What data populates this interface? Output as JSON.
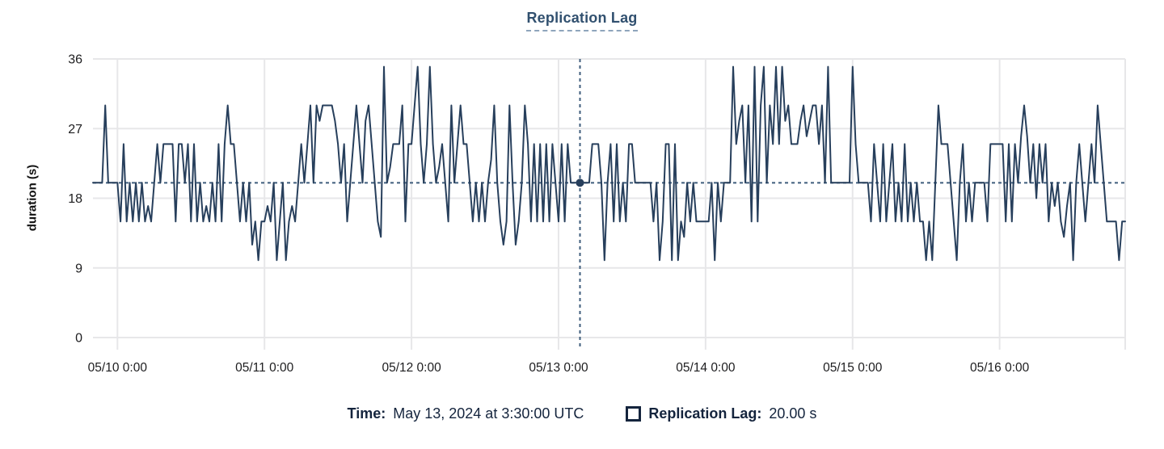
{
  "title": "Replication Lag",
  "y_axis": {
    "label": "duration (s)"
  },
  "tooltip": {
    "time_label": "Time:",
    "time_value": "May 13, 2024 at 3:30:00 UTC",
    "series_label": "Replication Lag:",
    "series_value": "20.00 s"
  },
  "colors": {
    "line": "#273f5c",
    "crosshair": "#3f5d7c",
    "dot": "#273f5c",
    "grid": "#e7e7e9",
    "tick_text": "#1d1d1f",
    "title_text": "#31506f",
    "footer_text": "#14243d"
  },
  "chart_data": {
    "type": "line",
    "title": "Replication Lag",
    "xlabel": "",
    "ylabel": "duration (s)",
    "unit": "s",
    "ylim": [
      0,
      36
    ],
    "y_ticks": [
      36,
      27,
      18,
      9,
      0
    ],
    "x_tick_labels": [
      "05/10 0:00",
      "05/11 0:00",
      "05/12 0:00",
      "05/13 0:00",
      "05/14 0:00",
      "05/15 0:00",
      "05/16 0:00"
    ],
    "x_start": "05/09 20:00",
    "x_interval_hours": 0.5,
    "first_tick_offset_hours": 4,
    "tick_spacing_hours": 24,
    "grid": true,
    "legend": [
      {
        "name": "Replication Lag",
        "color": "#273f5c",
        "position": "bottom"
      }
    ],
    "crosshair": {
      "index": 159,
      "time": "May 13, 2024 at 3:30:00 UTC",
      "value": 20.0
    },
    "values": [
      20,
      20,
      20,
      20,
      30,
      20,
      20,
      20,
      20,
      15,
      25,
      15,
      20,
      15,
      20,
      15,
      20,
      15,
      17,
      15,
      20,
      25,
      20,
      25,
      25,
      25,
      25,
      15,
      25,
      25,
      20,
      25,
      15,
      25,
      15,
      20,
      15,
      17,
      15,
      20,
      15,
      25,
      15,
      25,
      30,
      25,
      25,
      20,
      15,
      20,
      15,
      20,
      12,
      15,
      10,
      15,
      15,
      17,
      15,
      20,
      10,
      15,
      20,
      10,
      15,
      17,
      15,
      20,
      25,
      20,
      25,
      30,
      20,
      30,
      28,
      30,
      30,
      30,
      30,
      28,
      25,
      20,
      25,
      15,
      20,
      25,
      30,
      25,
      20,
      28,
      30,
      25,
      20,
      15,
      13,
      35,
      20,
      22,
      25,
      25,
      25,
      30,
      15,
      25,
      25,
      30,
      35,
      25,
      20,
      25,
      35,
      25,
      20,
      22,
      25,
      20,
      15,
      30,
      20,
      25,
      30,
      25,
      25,
      20,
      15,
      20,
      15,
      20,
      15,
      20,
      23,
      30,
      20,
      15,
      12,
      15,
      30,
      20,
      12,
      15,
      20,
      30,
      25,
      15,
      25,
      15,
      25,
      15,
      25,
      15,
      25,
      20,
      15,
      25,
      15,
      25,
      20,
      20,
      20,
      20,
      20,
      20,
      20,
      25,
      25,
      25,
      20,
      10,
      20,
      25,
      15,
      25,
      15,
      20,
      15,
      25,
      25,
      20,
      20,
      20,
      20,
      20,
      20,
      15,
      20,
      10,
      15,
      25,
      25,
      10,
      25,
      10,
      15,
      13,
      20,
      15,
      20,
      15,
      15,
      15,
      15,
      15,
      20,
      10,
      20,
      15,
      20,
      20,
      20,
      35,
      25,
      28,
      30,
      20,
      30,
      15,
      35,
      15,
      30,
      35,
      20,
      30,
      25,
      35,
      25,
      35,
      28,
      30,
      25,
      25,
      25,
      28,
      30,
      26,
      28,
      30,
      30,
      25,
      30,
      20,
      35,
      20,
      20,
      20,
      20,
      20,
      20,
      20,
      35,
      25,
      20,
      20,
      20,
      20,
      15,
      25,
      20,
      15,
      25,
      15,
      20,
      25,
      15,
      20,
      15,
      25,
      15,
      20,
      15,
      20,
      15,
      15,
      10,
      15,
      10,
      20,
      30,
      25,
      25,
      25,
      20,
      15,
      10,
      20,
      25,
      15,
      20,
      15,
      20,
      20,
      20,
      20,
      15,
      25,
      25,
      25,
      25,
      25,
      15,
      25,
      15,
      25,
      20,
      26,
      30,
      26,
      20,
      25,
      18,
      25,
      20,
      25,
      15,
      20,
      17,
      20,
      15,
      13,
      17,
      20,
      10,
      20,
      25,
      20,
      15,
      20,
      25,
      20,
      30,
      25,
      20,
      15,
      15,
      15,
      15,
      10,
      15,
      15
    ]
  }
}
